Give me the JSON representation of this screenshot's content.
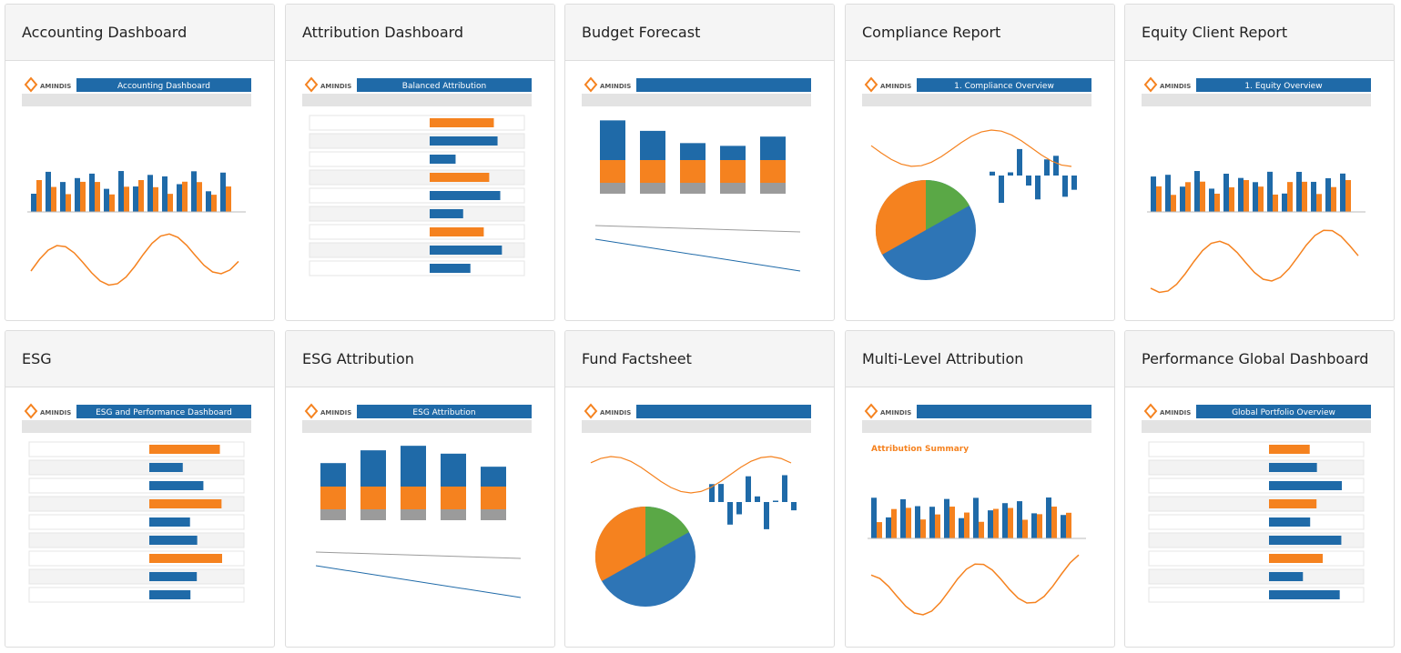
{
  "logo_text": "AMINDIS",
  "cards": [
    {
      "title": "Accounting Dashboard",
      "banner": "Accounting Dashboard"
    },
    {
      "title": "Attribution Dashboard",
      "banner": "Balanced Attribution"
    },
    {
      "title": "Budget Forecast"
    },
    {
      "title": "Compliance Report",
      "banner": "1. Compliance Overview"
    },
    {
      "title": "Equity Client Report",
      "banner": "1. Equity Overview"
    },
    {
      "title": "ESG",
      "banner": "ESG and Performance Dashboard"
    },
    {
      "title": "ESG Attribution",
      "banner": "ESG Attribution"
    },
    {
      "title": "Fund Factsheet"
    },
    {
      "title": "Multi-Level Attribution",
      "heading": "Attribution Summary"
    },
    {
      "title": "Performance Global Dashboard",
      "banner": "Global Portfolio Overview"
    }
  ]
}
